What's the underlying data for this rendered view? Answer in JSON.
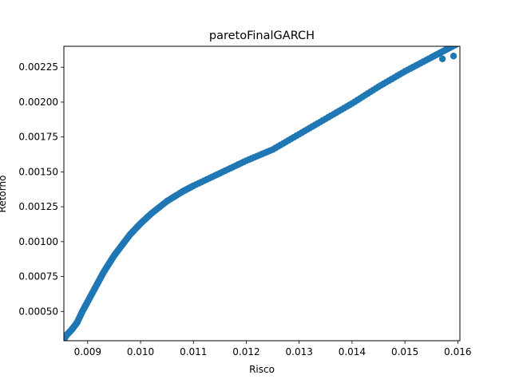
{
  "chart_data": {
    "type": "scatter",
    "title": "paretoFinalGARCH",
    "xlabel": "Risco",
    "ylabel": "Retorno",
    "xlim": [
      0.00855,
      0.01604
    ],
    "ylim": [
      0.00029,
      0.0024
    ],
    "xticks": [
      {
        "value": 0.009,
        "label": "0.009"
      },
      {
        "value": 0.01,
        "label": "0.010"
      },
      {
        "value": 0.011,
        "label": "0.011"
      },
      {
        "value": 0.012,
        "label": "0.012"
      },
      {
        "value": 0.013,
        "label": "0.013"
      },
      {
        "value": 0.014,
        "label": "0.014"
      },
      {
        "value": 0.015,
        "label": "0.015"
      },
      {
        "value": 0.016,
        "label": "0.016"
      }
    ],
    "yticks": [
      {
        "value": 0.0005,
        "label": "0.00050"
      },
      {
        "value": 0.00075,
        "label": "0.00075"
      },
      {
        "value": 0.001,
        "label": "0.00100"
      },
      {
        "value": 0.00125,
        "label": "0.00125"
      },
      {
        "value": 0.0015,
        "label": "0.00150"
      },
      {
        "value": 0.00175,
        "label": "0.00175"
      },
      {
        "value": 0.002,
        "label": "0.00200"
      },
      {
        "value": 0.00225,
        "label": "0.00225"
      }
    ],
    "grid": false,
    "marker_color": "#1f77b4",
    "curve_points": [
      [
        0.00855,
        0.0003
      ],
      [
        0.0086,
        0.00033
      ],
      [
        0.0087,
        0.00037
      ],
      [
        0.0088,
        0.00042
      ],
      [
        0.0089,
        0.0005
      ],
      [
        0.009,
        0.00057
      ],
      [
        0.0091,
        0.00064
      ],
      [
        0.0092,
        0.00071
      ],
      [
        0.0093,
        0.00078
      ],
      [
        0.0094,
        0.00084
      ],
      [
        0.0095,
        0.0009
      ],
      [
        0.0096,
        0.00095
      ],
      [
        0.0097,
        0.001
      ],
      [
        0.0098,
        0.00105
      ],
      [
        0.0099,
        0.00109
      ],
      [
        0.01,
        0.00113
      ],
      [
        0.0102,
        0.0012
      ],
      [
        0.0105,
        0.00129
      ],
      [
        0.0108,
        0.00136
      ],
      [
        0.011,
        0.0014
      ],
      [
        0.0115,
        0.00149
      ],
      [
        0.012,
        0.00158
      ],
      [
        0.0125,
        0.00166
      ],
      [
        0.013,
        0.00177
      ],
      [
        0.0135,
        0.00188
      ],
      [
        0.014,
        0.00199
      ],
      [
        0.0145,
        0.00211
      ],
      [
        0.015,
        0.00222
      ],
      [
        0.0155,
        0.00232
      ],
      [
        0.0158,
        0.00238
      ],
      [
        0.016,
        0.00242
      ]
    ],
    "points_per_segment": 10,
    "outlier_points": [
      [
        0.01571,
        0.00231
      ],
      [
        0.01592,
        0.00233
      ]
    ]
  }
}
